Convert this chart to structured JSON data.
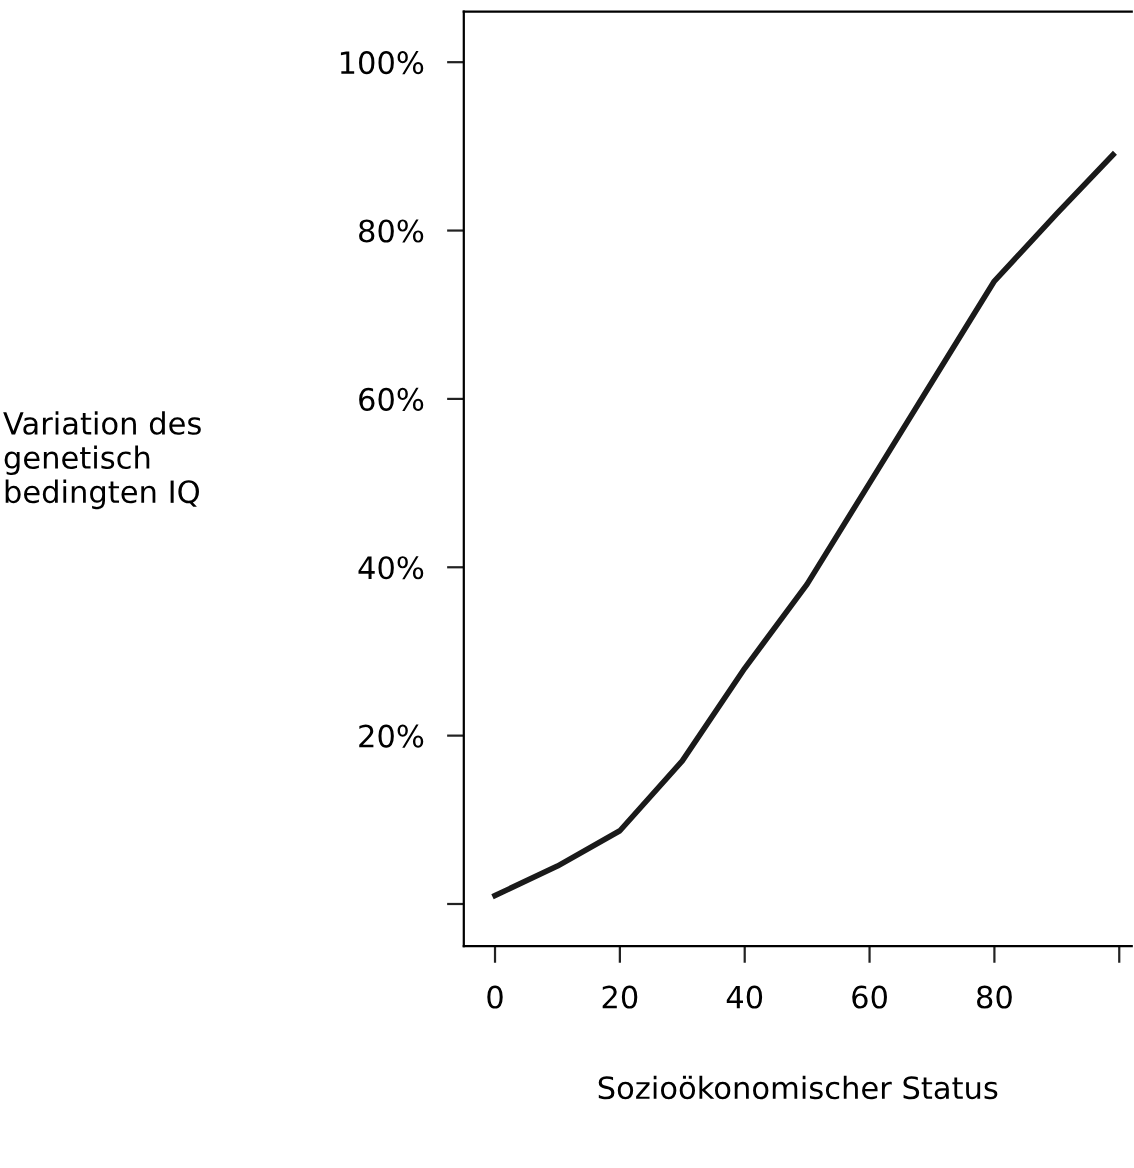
{
  "chart_data": {
    "type": "line",
    "xlabel": "Sozioökonomischer Status",
    "ylabel": "Variation des\ngenetisch\nbedingten IQ",
    "x": [
      0,
      10,
      20,
      30,
      40,
      50,
      60,
      70,
      80,
      90,
      99
    ],
    "series": [
      {
        "color": "#1a1a1a",
        "values": [
          1,
          4.5,
          8.7,
          17,
          28,
          38,
          50,
          62,
          74,
          82,
          89
        ]
      }
    ],
    "xlim": [
      -5,
      102
    ],
    "xticks": [
      0,
      20,
      40,
      60,
      80,
      {
        "value": 100,
        "label": null
      }
    ],
    "ylim": [
      -5,
      106
    ],
    "yticks": [
      {
        "value": 0,
        "label": null
      },
      {
        "value": 20,
        "label": "20%"
      },
      {
        "value": 40,
        "label": "40%"
      },
      {
        "value": 60,
        "label": "60%"
      },
      {
        "value": 80,
        "label": "80%"
      },
      {
        "value": 100,
        "label": "100%"
      }
    ],
    "grid": false,
    "marker": "none",
    "line_style": "solid"
  }
}
